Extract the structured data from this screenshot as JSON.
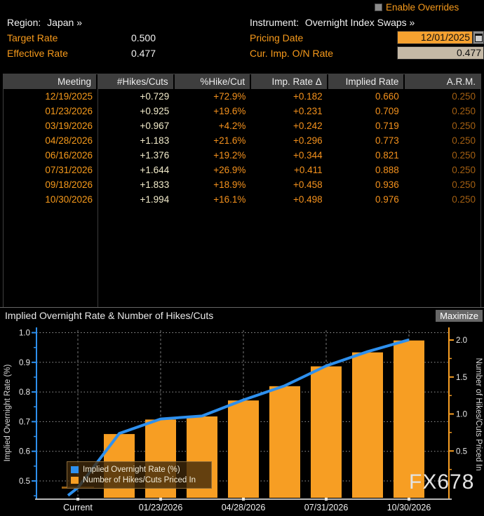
{
  "header": {
    "enable_overrides_label": "Enable Overrides",
    "region_label": "Region:",
    "region_value": "Japan »",
    "instrument_label": "Instrument:",
    "instrument_value": "Overnight Index Swaps »",
    "target_rate_label": "Target Rate",
    "target_rate_value": "0.500",
    "effective_rate_label": "Effective Rate",
    "effective_rate_value": "0.477",
    "pricing_date_label": "Pricing Date",
    "pricing_date_value": "12/01/2025",
    "cur_imp_on_rate_label": "Cur. Imp. O/N Rate",
    "cur_imp_on_rate_value": "0.477"
  },
  "table": {
    "columns": [
      "Meeting",
      "#Hikes/Cuts",
      "%Hike/Cut",
      "Imp. Rate Δ",
      "Implied Rate",
      "A.R.M."
    ],
    "rows": [
      [
        "12/19/2025",
        "+0.729",
        "+72.9%",
        "+0.182",
        "0.660",
        "0.250"
      ],
      [
        "01/23/2026",
        "+0.925",
        "+19.6%",
        "+0.231",
        "0.709",
        "0.250"
      ],
      [
        "03/19/2026",
        "+0.967",
        "+4.2%",
        "+0.242",
        "0.719",
        "0.250"
      ],
      [
        "04/28/2026",
        "+1.183",
        "+21.6%",
        "+0.296",
        "0.773",
        "0.250"
      ],
      [
        "06/16/2026",
        "+1.376",
        "+19.2%",
        "+0.344",
        "0.821",
        "0.250"
      ],
      [
        "07/31/2026",
        "+1.644",
        "+26.9%",
        "+0.411",
        "0.888",
        "0.250"
      ],
      [
        "09/18/2026",
        "+1.833",
        "+18.9%",
        "+0.458",
        "0.936",
        "0.250"
      ],
      [
        "10/30/2026",
        "+1.994",
        "+16.1%",
        "+0.498",
        "0.976",
        "0.250"
      ]
    ]
  },
  "chart": {
    "title": "Implied Overnight Rate & Number of Hikes/Cuts",
    "maximize_label": "Maximize",
    "watermark": "FX678"
  },
  "chart_data": {
    "type": "bar+line",
    "title": "Implied Overnight Rate & Number of Hikes/Cuts",
    "categories": [
      "Current",
      "12/19/2025",
      "01/23/2026",
      "03/19/2026",
      "04/28/2026",
      "06/16/2026",
      "07/31/2026",
      "09/18/2026",
      "10/30/2026"
    ],
    "x_axis_labels": [
      "Current",
      "01/23/2026",
      "04/28/2026",
      "07/31/2026",
      "10/30/2026"
    ],
    "series": [
      {
        "name": "Implied Overnight Rate (%)",
        "type": "line",
        "axis": "left",
        "color": "#2e90ee",
        "values": [
          0.477,
          0.66,
          0.709,
          0.719,
          0.773,
          0.821,
          0.888,
          0.936,
          0.976
        ]
      },
      {
        "name": "Number of Hikes/Cuts Priced In",
        "type": "bar",
        "axis": "right",
        "color": "#f79e23",
        "values": [
          0.0,
          0.729,
          0.925,
          0.967,
          1.183,
          1.376,
          1.644,
          1.833,
          1.994
        ]
      }
    ],
    "left_axis": {
      "label": "Implied Overnight Rate (%)",
      "ticks": [
        0.5,
        0.6,
        0.7,
        0.8,
        0.9,
        1.0
      ],
      "range": [
        0.44,
        1.02
      ],
      "color": "#2e90ee"
    },
    "right_axis": {
      "label": "Number of Hikes/Cuts Priced In",
      "ticks": [
        0.5,
        1.0,
        1.5,
        2.0
      ],
      "range": [
        0.0,
        2.15
      ],
      "color": "#f79e23"
    },
    "grid": true,
    "legend_position": "bottom-left"
  }
}
